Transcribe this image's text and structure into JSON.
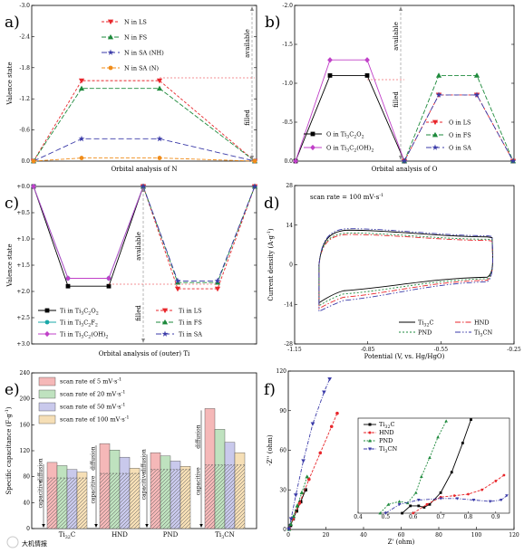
{
  "figure": {
    "watermark": "大机情报"
  },
  "chart_data": [
    {
      "id": "a",
      "panel_label": "a)",
      "type": "line",
      "xlabel": "Orbital analysis of N",
      "ylabel": "Valence state",
      "ylim": [
        0.0,
        -3.0
      ],
      "yticks": [
        "0.0",
        "-0.6",
        "-1.2",
        "-1.8",
        "-2.4",
        "-3.0"
      ],
      "x": [
        0,
        1,
        2,
        3
      ],
      "series": [
        {
          "name": "N in LS",
          "color": "#e8262b",
          "dash": "3,2",
          "marker": "tri-down",
          "values": [
            0.0,
            -1.55,
            -1.55,
            0.0
          ]
        },
        {
          "name": "N in FS",
          "color": "#1e8a3c",
          "dash": "5,2",
          "marker": "tri-up",
          "values": [
            0.0,
            -1.4,
            -1.4,
            0.0
          ]
        },
        {
          "name": "N in SA (NH)",
          "color": "#3a3aa8",
          "dash": "6,3",
          "marker": "star",
          "values": [
            0.0,
            -0.43,
            -0.43,
            0.0
          ]
        },
        {
          "name": "N in SA (N)",
          "color": "#f08c1a",
          "dash": "4,2",
          "marker": "circle",
          "values": [
            0.0,
            -0.06,
            -0.06,
            0.0
          ]
        }
      ],
      "annotations": {
        "upper": "available",
        "lower": "filled"
      }
    },
    {
      "id": "b",
      "panel_label": "b)",
      "type": "line",
      "xlabel": "Orbital analysis of O",
      "ylabel": "",
      "ylim": [
        0.0,
        -2.0
      ],
      "yticks": [
        "0.0",
        "-0.5",
        "-1.0",
        "-1.5",
        "-2.0"
      ],
      "x": [
        0,
        1,
        2,
        3,
        4,
        5,
        6
      ],
      "series": [
        {
          "name": "O in Ti3C2O2",
          "color": "#000000",
          "dash": "",
          "marker": "square",
          "values": [
            0.0,
            -1.1,
            -1.1,
            0.0,
            null,
            null,
            null
          ]
        },
        {
          "name": "O in Ti3C2(OH)2",
          "color": "#c040c8",
          "dash": "",
          "marker": "diamond",
          "values": [
            0.0,
            -1.3,
            -1.3,
            0.0,
            null,
            null,
            null
          ]
        },
        {
          "name": "O in LS",
          "color": "#e8262b",
          "dash": "3,2",
          "marker": "tri-down",
          "values": [
            null,
            null,
            null,
            0.0,
            -0.85,
            -0.85,
            0.0
          ]
        },
        {
          "name": "O in FS",
          "color": "#1e8a3c",
          "dash": "5,2",
          "marker": "tri-up",
          "values": [
            null,
            null,
            null,
            0.0,
            -1.1,
            -1.1,
            0.0
          ]
        },
        {
          "name": "O in SA",
          "color": "#3a3aa8",
          "dash": "6,3",
          "marker": "star",
          "values": [
            null,
            null,
            null,
            0.0,
            -0.85,
            -0.85,
            0.0
          ]
        }
      ],
      "legend_left": [
        {
          "pre": "O in Ti",
          "s1": "3",
          "mid": "C",
          "s2": "2",
          "post": "O",
          "s3": "2"
        },
        {
          "pre": "O in Ti",
          "s1": "3",
          "mid": "C",
          "s2": "2",
          "post": "(OH)",
          "s3": "2"
        }
      ],
      "annotations": {
        "upper": "available",
        "lower": "filled"
      }
    },
    {
      "id": "c",
      "panel_label": "c)",
      "type": "line",
      "xlabel": "Orbital analysis of (outer) Ti",
      "ylabel": "Valence state",
      "ylim": [
        0.0,
        3.0
      ],
      "yticks": [
        "+0.0",
        "+0.5",
        "+1.0",
        "+1.5",
        "+2.0",
        "+2.5",
        "+3.0"
      ],
      "x": [
        0,
        1,
        2,
        3,
        4,
        5,
        6
      ],
      "series": [
        {
          "name": "Ti in Ti3C2O2",
          "color": "#000000",
          "dash": "",
          "marker": "square",
          "values": [
            0.0,
            1.9,
            1.9,
            0.0,
            null,
            null,
            null
          ]
        },
        {
          "name": "Ti in Ti3C2F2",
          "color": "#1aa8a8",
          "dash": "",
          "marker": "circle",
          "values": [
            0.0,
            1.75,
            1.75,
            0.0,
            null,
            null,
            null
          ]
        },
        {
          "name": "Ti in Ti3C2(OH)2",
          "color": "#c040c8",
          "dash": "",
          "marker": "diamond",
          "values": [
            0.0,
            1.75,
            1.75,
            0.0,
            null,
            null,
            null
          ]
        },
        {
          "name": "Ti in LS",
          "color": "#e8262b",
          "dash": "3,2",
          "marker": "tri-down",
          "values": [
            null,
            null,
            null,
            0.0,
            1.95,
            1.95,
            0.0
          ]
        },
        {
          "name": "Ti in FS",
          "color": "#1e8a3c",
          "dash": "5,2",
          "marker": "tri-up",
          "values": [
            null,
            null,
            null,
            0.0,
            1.83,
            1.83,
            0.0
          ]
        },
        {
          "name": "Ti in SA",
          "color": "#3a3aa8",
          "dash": "6,3",
          "marker": "star",
          "values": [
            null,
            null,
            null,
            0.0,
            1.8,
            1.8,
            0.0
          ]
        }
      ],
      "legend_left": [
        {
          "pre": "Ti in Ti",
          "s1": "3",
          "mid": "C",
          "s2": "2",
          "post": "O",
          "s3": "2"
        },
        {
          "pre": "Ti in Ti",
          "s1": "3",
          "mid": "C",
          "s2": "2",
          "post": "F",
          "s3": "2"
        },
        {
          "pre": "Ti in Ti",
          "s1": "3",
          "mid": "C",
          "s2": "2",
          "post": "(OH)",
          "s3": "2"
        }
      ],
      "annotations": {
        "upper": "available",
        "lower": "filled"
      }
    },
    {
      "id": "d",
      "panel_label": "d)",
      "type": "line",
      "title": "scan rate = 100 mV·s",
      "title_sup": "-1",
      "xlabel": "Potential (V, vs. Hg/HgO)",
      "ylabel": "Current density (A·g",
      "ylabel_sup": "-1",
      "ylabel_end": ")",
      "xlim": [
        -1.15,
        -0.25
      ],
      "ylim": [
        -28,
        28
      ],
      "xticks": [
        "-1.15",
        "-0.85",
        "-0.55",
        "-0.25"
      ],
      "yticks": [
        "-28",
        "-14",
        "0",
        "14",
        "28"
      ],
      "series": [
        {
          "name": "Ti3C2",
          "color": "#000000",
          "dash": "",
          "upper_plateau": 12.0,
          "lower_plateau": -8.0,
          "lower_start": -13.5
        },
        {
          "name": "HND",
          "color": "#e8262b",
          "dash": "6,2,1.5,2",
          "upper_plateau": 10.5,
          "lower_plateau": -10.0,
          "lower_start": -15.5
        },
        {
          "name": "PND",
          "color": "#1e8a3c",
          "dash": "2,2",
          "upper_plateau": 11.0,
          "lower_plateau": -9.0,
          "lower_start": -14.5
        },
        {
          "name": "Ti3CN",
          "color": "#3a3aa8",
          "dash": "6,2,1.5,2,1.5,2",
          "upper_plateau": 12.5,
          "lower_plateau": -11.0,
          "lower_start": -16.5
        }
      ],
      "legend": [
        {
          "pre": "Ti",
          "s1": "3",
          "post": "C",
          "s2": "2"
        },
        {
          "pre": "HND",
          "s1": "",
          "post": "",
          "s2": ""
        },
        {
          "pre": "PND",
          "s1": "",
          "post": "",
          "s2": ""
        },
        {
          "pre": "Ti",
          "s1": "3",
          "post": "CN",
          "s2": ""
        }
      ]
    },
    {
      "id": "e",
      "panel_label": "e)",
      "type": "bar",
      "ylabel": "Specific capacitance (F·g",
      "ylabel_sup": "-1",
      "ylabel_end": ")",
      "ylim": [
        0,
        240
      ],
      "yticks": [
        "0",
        "40",
        "80",
        "120",
        "160",
        "200",
        "240"
      ],
      "categories": [
        "Ti3C2",
        "HND",
        "PND",
        "Ti3CN"
      ],
      "category_labels": [
        {
          "pre": "Ti",
          "s1": "3",
          "post": "C",
          "s2": "2"
        },
        {
          "pre": "HND",
          "s1": "",
          "post": "",
          "s2": ""
        },
        {
          "pre": "PND",
          "s1": "",
          "post": "",
          "s2": ""
        },
        {
          "pre": "Ti",
          "s1": "3",
          "post": "CN",
          "s2": ""
        }
      ],
      "series": [
        {
          "name": "scan rate of 5 mV·s",
          "sup": "-1",
          "color": "#f5b8b8",
          "values": [
            102,
            131,
            117,
            185
          ]
        },
        {
          "name": "scan rate of 20 mV·s",
          "sup": "-1",
          "color": "#bfe2bf",
          "values": [
            97,
            121,
            112,
            153
          ]
        },
        {
          "name": "scan rate of 50 mV·s",
          "sup": "-1",
          "color": "#c9c9ec",
          "values": [
            91,
            110,
            104,
            133
          ]
        },
        {
          "name": "scan rate of 100 mV·s",
          "sup": "-1",
          "color": "#f6dfb6",
          "values": [
            87,
            93,
            96,
            117
          ]
        }
      ],
      "capacitive": [
        78,
        85,
        91,
        98
      ],
      "group_labels": {
        "capacitive": "capacitive",
        "diffusion": "diffusion"
      }
    },
    {
      "id": "f",
      "panel_label": "f)",
      "type": "scatter",
      "xlabel": "Z' (ohm)",
      "ylabel": "-Z'' (ohm)",
      "xlim": [
        0,
        120
      ],
      "ylim": [
        0,
        120
      ],
      "xticks": [
        "0",
        "20",
        "40",
        "60",
        "80",
        "100",
        "120"
      ],
      "yticks": [
        "0",
        "30",
        "60",
        "90",
        "120"
      ],
      "series": [
        {
          "name": "Ti3C2",
          "color": "#000000",
          "marker": "square",
          "x": [
            0.4,
            1.2,
            2.6,
            4.4,
            6.6,
            9.2
          ],
          "y": [
            0.2,
            3,
            8,
            14,
            21,
            30
          ]
        },
        {
          "name": "HND",
          "color": "#e8262b",
          "marker": "circle",
          "x": [
            0.5,
            2.5,
            6,
            11,
            17,
            23,
            26
          ],
          "y": [
            0.3,
            8,
            20,
            38,
            58,
            78,
            88
          ]
        },
        {
          "name": "PND",
          "color": "#1e8a3c",
          "marker": "tri-up",
          "x": [
            0.4,
            1.3,
            2.8,
            4.8,
            7.2,
            10
          ],
          "y": [
            0.2,
            4,
            10,
            18,
            28,
            40
          ]
        },
        {
          "name": "Ti3CN",
          "color": "#3a3aa8",
          "marker": "tri-down",
          "x": [
            0.3,
            1.5,
            4,
            8,
            13,
            19,
            22
          ],
          "y": [
            0.2,
            8,
            26,
            52,
            80,
            104,
            114
          ]
        }
      ],
      "legend": [
        {
          "pre": "Ti",
          "s1": "3",
          "post": "C",
          "s2": "2"
        },
        {
          "pre": "HND",
          "s1": "",
          "post": "",
          "s2": ""
        },
        {
          "pre": "PND",
          "s1": "",
          "post": "",
          "s2": ""
        },
        {
          "pre": "Ti",
          "s1": "3",
          "post": "CN",
          "s2": ""
        }
      ],
      "inset": {
        "xlim": [
          0.4,
          0.95
        ],
        "ylim": [
          0,
          0.65
        ],
        "xticks": [
          "0.4",
          "0.5",
          "0.6",
          "0.7",
          "0.8",
          "0.9"
        ],
        "series": [
          {
            "name": "Ti3C2",
            "x": [
              0.56,
              0.59,
              0.62,
              0.64,
              0.66,
              0.7,
              0.74,
              0.78,
              0.81
            ],
            "y": [
              0.0,
              0.05,
              0.05,
              0.04,
              0.06,
              0.14,
              0.28,
              0.48,
              0.64
            ]
          },
          {
            "name": "HND",
            "x": [
              0.6,
              0.65,
              0.7,
              0.75,
              0.8,
              0.85,
              0.9,
              0.93
            ],
            "y": [
              0.0,
              0.06,
              0.11,
              0.12,
              0.13,
              0.16,
              0.22,
              0.26
            ]
          },
          {
            "name": "PND",
            "x": [
              0.48,
              0.51,
              0.55,
              0.58,
              0.61,
              0.63,
              0.66,
              0.69,
              0.72
            ],
            "y": [
              0.0,
              0.06,
              0.08,
              0.07,
              0.14,
              0.25,
              0.38,
              0.52,
              0.63
            ]
          },
          {
            "name": "Ti3CN",
            "x": [
              0.5,
              0.55,
              0.62,
              0.7,
              0.76,
              0.82,
              0.88,
              0.92,
              0.94
            ],
            "y": [
              0.0,
              0.06,
              0.09,
              0.1,
              0.1,
              0.09,
              0.08,
              0.09,
              0.12
            ]
          }
        ]
      }
    }
  ]
}
